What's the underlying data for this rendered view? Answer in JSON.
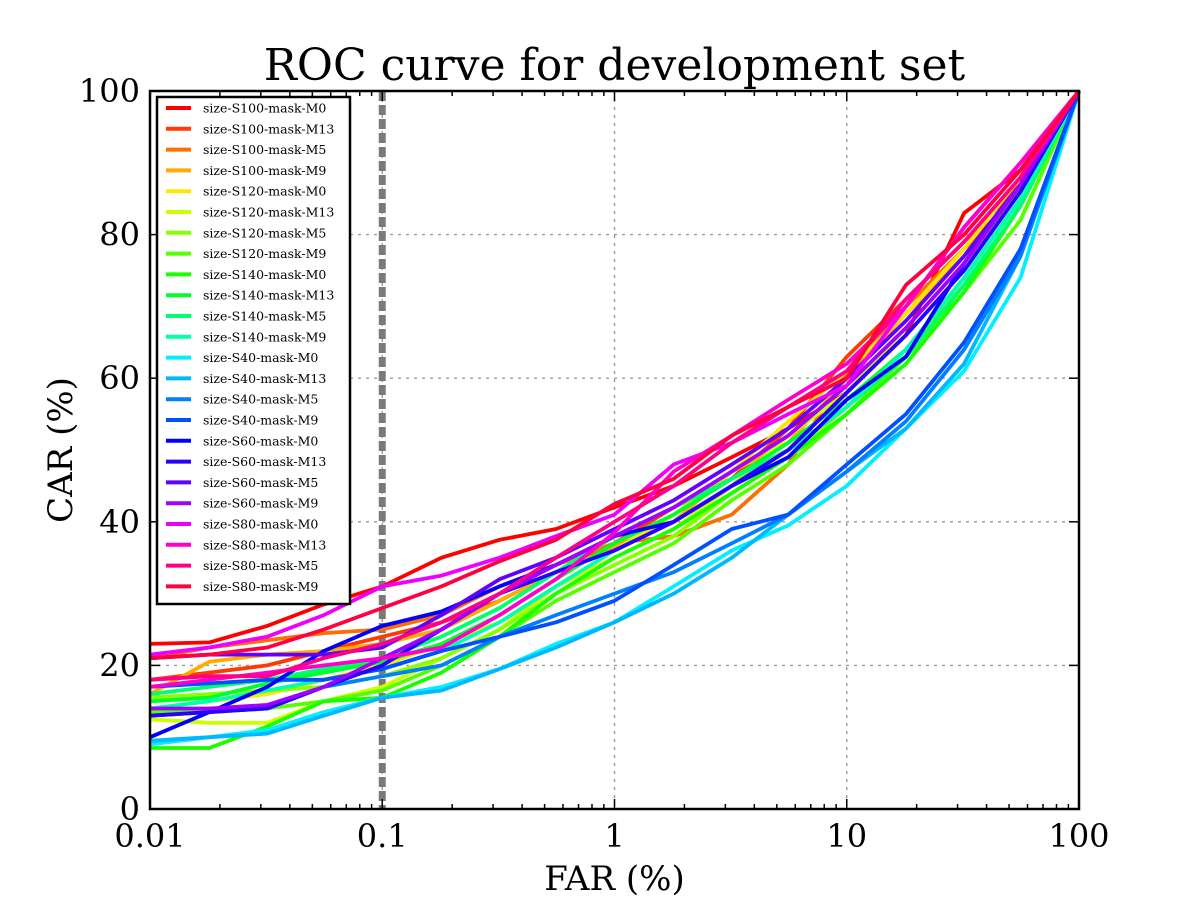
{
  "chart_data": {
    "type": "line",
    "title": "ROC curve for development set",
    "xlabel": "FAR (%)",
    "ylabel": "CAR (%)",
    "x_scale": "log",
    "xlim": [
      0.01,
      100
    ],
    "ylim": [
      0,
      100
    ],
    "x_ticks": [
      0.01,
      0.1,
      1,
      10,
      100
    ],
    "x_tick_labels": [
      "0.01",
      "0.1",
      "1",
      "10",
      "100"
    ],
    "y_ticks": [
      0,
      20,
      40,
      60,
      80,
      100
    ],
    "y_tick_labels": [
      "0",
      "20",
      "40",
      "60",
      "80",
      "100"
    ],
    "grid": true,
    "legend_position": "upper-left",
    "threshold_line_x": 0.1,
    "x": [
      0.01,
      0.018,
      0.032,
      0.056,
      0.1,
      0.18,
      0.32,
      0.56,
      1,
      1.8,
      3.2,
      5.6,
      10,
      18,
      32,
      56,
      100
    ],
    "series": [
      {
        "name": "size-S100-mask-M0",
        "color": "#ff0000",
        "values": [
          23,
          23.2,
          25.5,
          28.5,
          31,
          35,
          37.5,
          39,
          42,
          45,
          49,
          53,
          58,
          66,
          83,
          89,
          100
        ]
      },
      {
        "name": "size-S100-mask-M13",
        "color": "#ff3a00",
        "values": [
          18,
          19,
          20,
          22,
          24,
          26,
          29,
          33,
          37,
          42,
          46,
          53,
          63,
          71,
          79,
          87,
          100
        ]
      },
      {
        "name": "size-S100-mask-M5",
        "color": "#ff6e00",
        "values": [
          21,
          22.5,
          23.5,
          24.5,
          25,
          27,
          31,
          34,
          37,
          38,
          41,
          48,
          61,
          70,
          78,
          86,
          100
        ]
      },
      {
        "name": "size-S100-mask-M9",
        "color": "#ffab00",
        "values": [
          16,
          20.5,
          21.5,
          22,
          23,
          25,
          29,
          33,
          36.5,
          40,
          47,
          51,
          60,
          69,
          77,
          86,
          100
        ]
      },
      {
        "name": "size-S120-mask-M0",
        "color": "#ffe600",
        "values": [
          14,
          15,
          16,
          18,
          20,
          23,
          26,
          31,
          36,
          41,
          47,
          54,
          61,
          69,
          78,
          88,
          100
        ]
      },
      {
        "name": "size-S120-mask-M13",
        "color": "#ccff00",
        "values": [
          12.5,
          12,
          12,
          15,
          17,
          21,
          25,
          31,
          35,
          39,
          45,
          52,
          58,
          67,
          76,
          86,
          100
        ]
      },
      {
        "name": "size-S120-mask-M5",
        "color": "#8aff00",
        "values": [
          15.5,
          16,
          16.5,
          17,
          18.5,
          21,
          25,
          30,
          34,
          38,
          44,
          49,
          56,
          64,
          73,
          84,
          100
        ]
      },
      {
        "name": "size-S120-mask-M9",
        "color": "#55ff00",
        "values": [
          13.5,
          14,
          14,
          15,
          16.5,
          20,
          24,
          29,
          33,
          37,
          43,
          48,
          55,
          63,
          72,
          82,
          100
        ]
      },
      {
        "name": "size-S140-mask-M0",
        "color": "#1aff00",
        "values": [
          8.5,
          8.5,
          11.5,
          15,
          15.5,
          19,
          24,
          30,
          35,
          39,
          44,
          49,
          55,
          62,
          72,
          84,
          100
        ]
      },
      {
        "name": "size-S140-mask-M13",
        "color": "#00ff2a",
        "values": [
          15,
          15.5,
          17.5,
          19,
          20.5,
          23,
          27,
          32,
          37,
          41,
          46,
          51,
          57,
          64,
          74,
          85,
          100
        ]
      },
      {
        "name": "size-S140-mask-M5",
        "color": "#00ff70",
        "values": [
          16,
          17,
          18,
          19.5,
          21,
          24,
          28,
          33,
          38,
          42,
          46,
          50,
          56,
          63,
          73,
          84,
          100
        ]
      },
      {
        "name": "size-S140-mask-M9",
        "color": "#00ffb0",
        "values": [
          14,
          15,
          16.5,
          18,
          19.5,
          22,
          26,
          31,
          36,
          40,
          45,
          50,
          56,
          64,
          74,
          85,
          100
        ]
      },
      {
        "name": "size-S40-mask-M0",
        "color": "#00f0ff",
        "values": [
          9,
          10,
          11,
          13.5,
          15.5,
          17,
          19.5,
          23,
          26,
          31,
          36,
          39.5,
          45,
          53,
          61,
          74,
          100
        ]
      },
      {
        "name": "size-S40-mask-M13",
        "color": "#00b8ff",
        "values": [
          9.5,
          10,
          10.5,
          13,
          15.5,
          16.5,
          19.5,
          22.5,
          26,
          30,
          35,
          41,
          47,
          53,
          62,
          77,
          100
        ]
      },
      {
        "name": "size-S40-mask-M5",
        "color": "#0080ff",
        "values": [
          13,
          13.5,
          14,
          17,
          18.5,
          20,
          24,
          27,
          30,
          33,
          37,
          41,
          47,
          54,
          64,
          77,
          100
        ]
      },
      {
        "name": "size-S40-mask-M9",
        "color": "#0050ff",
        "values": [
          17,
          17.5,
          18,
          18,
          19.5,
          22,
          24,
          26,
          29,
          34,
          39,
          41,
          48,
          55,
          65,
          78,
          100
        ]
      },
      {
        "name": "size-S60-mask-M0",
        "color": "#0000ff",
        "values": [
          10,
          13.5,
          17,
          22,
          25.5,
          27.5,
          31,
          34,
          38,
          40,
          45,
          49,
          57,
          63,
          76,
          87,
          100
        ]
      },
      {
        "name": "size-S60-mask-M13",
        "color": "#2800ff",
        "values": [
          13,
          13.5,
          14,
          17,
          20,
          25,
          30,
          33,
          36,
          40,
          45,
          50,
          58,
          66,
          75,
          86,
          100
        ]
      },
      {
        "name": "size-S60-mask-M5",
        "color": "#6000ff",
        "values": [
          21,
          21.5,
          21.5,
          21.5,
          22.5,
          27,
          32,
          35,
          39,
          43,
          48,
          53,
          60,
          68,
          77,
          87,
          100
        ]
      },
      {
        "name": "size-S60-mask-M9",
        "color": "#a000ff",
        "values": [
          14,
          14,
          14.5,
          17,
          21,
          25,
          30,
          34,
          38,
          42,
          47,
          52,
          59,
          67,
          76,
          87,
          100
        ]
      },
      {
        "name": "size-S80-mask-M0",
        "color": "#ee00ff",
        "values": [
          21.5,
          22.5,
          24,
          27,
          31,
          32.5,
          35,
          38,
          41,
          48,
          51,
          55,
          59,
          70,
          81,
          90,
          100
        ]
      },
      {
        "name": "size-S80-mask-M13",
        "color": "#ff00cc",
        "values": [
          17,
          18,
          19,
          20,
          21,
          22.5,
          27,
          32,
          38.5,
          47,
          52,
          57,
          62,
          70,
          81,
          90,
          100
        ]
      },
      {
        "name": "size-S80-mask-M5",
        "color": "#ff0088",
        "values": [
          18,
          18.5,
          18.5,
          21,
          23,
          26,
          30,
          35,
          40,
          45,
          51,
          56,
          61,
          71,
          79,
          88,
          100
        ]
      },
      {
        "name": "size-S80-mask-M9",
        "color": "#ff0040",
        "values": [
          21,
          21.5,
          22.5,
          25,
          28,
          31,
          34.5,
          37.5,
          42.5,
          46,
          52,
          56,
          60,
          73,
          80,
          89,
          100
        ]
      }
    ]
  }
}
